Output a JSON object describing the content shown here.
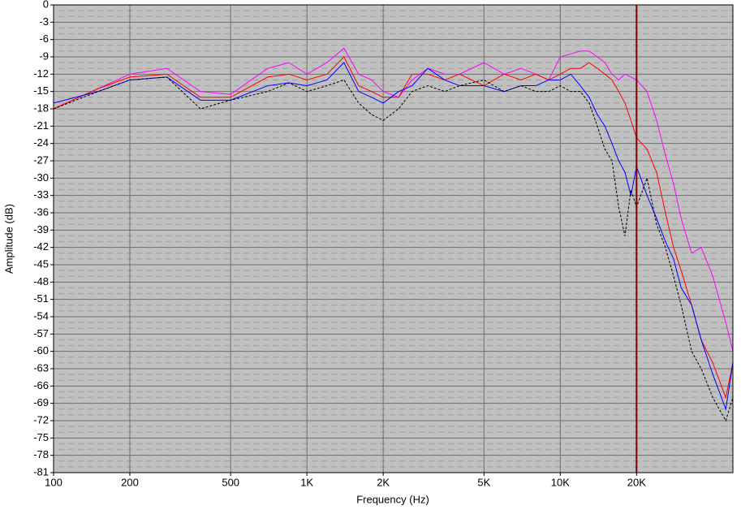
{
  "chart_data": {
    "type": "line",
    "xlabel": "Frequency (Hz)",
    "ylabel": "Amplitude (dB)",
    "xscale": "log",
    "grid": true,
    "xlim": [
      100,
      48000
    ],
    "ylim": [
      -81,
      0
    ],
    "xticks": [
      100,
      200,
      500,
      {
        "value": 1000,
        "label": "1K"
      },
      {
        "value": 2000,
        "label": "2K"
      },
      {
        "value": 5000,
        "label": "5K"
      },
      {
        "value": 10000,
        "label": "10K"
      },
      {
        "value": 20000,
        "label": "20K"
      }
    ],
    "yticks": [
      0,
      -3,
      -6,
      -9,
      -12,
      -15,
      -18,
      -21,
      -24,
      -27,
      -30,
      -33,
      -36,
      -39,
      -42,
      -45,
      -48,
      -51,
      -54,
      -57,
      -60,
      -63,
      -66,
      -69,
      -72,
      -75,
      -78,
      -81
    ],
    "marker_x": 20000,
    "marker_color": "#800000",
    "x": [
      100,
      150,
      200,
      280,
      380,
      500,
      700,
      850,
      1000,
      1200,
      1400,
      1600,
      1800,
      2000,
      2300,
      2600,
      3000,
      3500,
      4000,
      5000,
      6000,
      7000,
      8000,
      9000,
      10000,
      11000,
      12000,
      13000,
      14000,
      15000,
      16000,
      17000,
      18000,
      19000,
      20000,
      22000,
      24000,
      26000,
      28000,
      30000,
      33000,
      36000,
      40000,
      45000,
      48000
    ],
    "series": [
      {
        "color": "#ff00ff",
        "dashed": false,
        "values": [
          -18,
          -14.5,
          -12,
          -11,
          -15,
          -15.5,
          -11,
          -10,
          -12,
          -10,
          -7.5,
          -12,
          -13,
          -15,
          -16,
          -13,
          -11,
          -12,
          -12,
          -10,
          -12,
          -11,
          -12,
          -13,
          -9,
          -8.5,
          -8,
          -8,
          -9,
          -10,
          -12,
          -13,
          -12,
          -12.5,
          -13,
          -15,
          -20,
          -26,
          -31,
          -37,
          -43,
          -42,
          -47,
          -55,
          -60
        ]
      },
      {
        "color": "#ff0000",
        "dashed": false,
        "values": [
          -18,
          -14.5,
          -12.5,
          -12,
          -16,
          -16,
          -12.5,
          -12,
          -13,
          -12,
          -9,
          -14,
          -15,
          -16,
          -16,
          -12,
          -12,
          -13,
          -12,
          -14,
          -12,
          -13,
          -12,
          -13,
          -12,
          -11,
          -11,
          -10,
          -11,
          -12,
          -13,
          -15,
          -17,
          -20,
          -23,
          -25,
          -29,
          -36,
          -42,
          -46,
          -52,
          -58,
          -62,
          -68,
          -62
        ]
      },
      {
        "color": "#0000ff",
        "dashed": false,
        "values": [
          -17,
          -15,
          -13,
          -12.5,
          -16.5,
          -16.5,
          -14,
          -13.5,
          -14,
          -13,
          -10,
          -15,
          -16,
          -17,
          -15,
          -14,
          -11,
          -13,
          -14,
          -14,
          -15,
          -14,
          -14,
          -13,
          -13,
          -12,
          -14,
          -16,
          -19,
          -21,
          -24,
          -27,
          -29,
          -33,
          -28,
          -33,
          -37,
          -41,
          -44,
          -49,
          -52,
          -58,
          -64,
          -70,
          -62
        ]
      },
      {
        "color": "#000000",
        "dashed": true,
        "values": [
          -18,
          -15,
          -13,
          -12.5,
          -18,
          -16.5,
          -15,
          -13.5,
          -15,
          -14,
          -13,
          -17,
          -19,
          -20,
          -18,
          -15,
          -14,
          -15,
          -14,
          -13,
          -15,
          -14,
          -15,
          -15,
          -14,
          -15,
          -15,
          -17,
          -21,
          -25,
          -27,
          -35,
          -40,
          -32,
          -35,
          -30,
          -38,
          -42,
          -47,
          -52,
          -60,
          -63,
          -68,
          -72,
          -68
        ]
      }
    ]
  }
}
